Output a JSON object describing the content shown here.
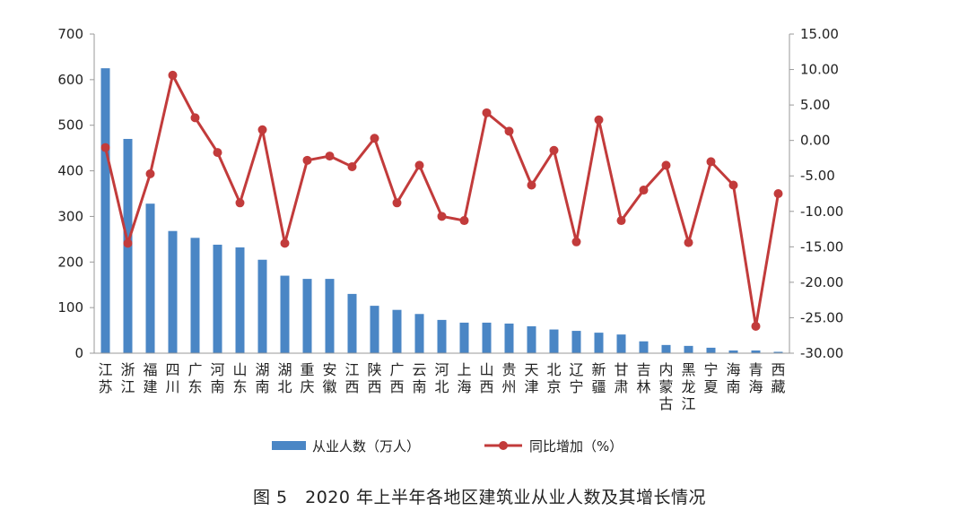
{
  "caption": "图 5　2020 年上半年各地区建筑业从业人数及其增长情况",
  "colors": {
    "bar": "#4a86c5",
    "line": "#c23b3b",
    "axis": "#999999"
  },
  "chart_data": {
    "type": "bar+line",
    "categories": [
      "江苏",
      "浙江",
      "福建",
      "四川",
      "广东",
      "河南",
      "山东",
      "湖南",
      "湖北",
      "重庆",
      "安徽",
      "江西",
      "陕西",
      "广西",
      "云南",
      "河北",
      "上海",
      "山西",
      "贵州",
      "天津",
      "北京",
      "辽宁",
      "新疆",
      "甘肃",
      "吉林",
      "内蒙古",
      "黑龙江",
      "宁夏",
      "海南",
      "青海",
      "西藏"
    ],
    "series": [
      {
        "name": "从业人数（万人）",
        "type": "bar",
        "axis": "left",
        "values": [
          625,
          470,
          328,
          268,
          253,
          238,
          232,
          205,
          170,
          163,
          163,
          130,
          104,
          95,
          86,
          73,
          67,
          67,
          65,
          59,
          52,
          49,
          45,
          41,
          26,
          18,
          16,
          12,
          6,
          6,
          3
        ]
      },
      {
        "name": "同比增加（%）",
        "type": "line",
        "axis": "right",
        "values": [
          -1.0,
          -14.5,
          -4.7,
          9.2,
          3.2,
          -1.7,
          -8.8,
          1.5,
          -14.5,
          -2.8,
          -2.2,
          -3.7,
          0.3,
          -8.8,
          -3.5,
          -10.7,
          -11.3,
          3.9,
          1.3,
          -6.3,
          -1.4,
          -14.3,
          2.9,
          -11.3,
          -7.0,
          -3.5,
          -14.4,
          -3.0,
          -6.3,
          -26.2,
          -7.5
        ]
      }
    ],
    "y_left": {
      "min": 0,
      "max": 700,
      "step": 100,
      "ticks": [
        "0",
        "100",
        "200",
        "300",
        "400",
        "500",
        "600",
        "700"
      ]
    },
    "y_right": {
      "min": -30,
      "max": 15,
      "step": 5,
      "ticks": [
        "-30.00",
        "-25.00",
        "-20.00",
        "-15.00",
        "-10.00",
        "-5.00",
        "0.00",
        "5.00",
        "10.00",
        "15.00"
      ]
    },
    "legend": {
      "placement": "bottom",
      "bar_label": "从业人数（万人）",
      "line_label": "同比增加（%）"
    },
    "grid": false
  }
}
